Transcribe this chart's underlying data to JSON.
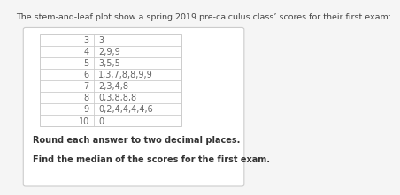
{
  "title": "The stem-and-leaf plot show a spring 2019 pre-calculus class’ scores for their first exam:",
  "stems": [
    "3",
    "4",
    "5",
    "6",
    "7",
    "8",
    "9",
    "10"
  ],
  "leaves": [
    "3",
    "2,9,9",
    "3,5,5",
    "1,3,7,8,8,9,9",
    "2,3,4,8",
    "0,3,8,8,8",
    "0,2,4,4,4,4,6",
    "0"
  ],
  "footer_line1": "Round each answer to two decimal places.",
  "footer_line2": "Find the median of the scores for the first exam.",
  "bg_color": "#f5f5f5",
  "outer_box_bg": "#ffffff",
  "outer_box_edge": "#cccccc",
  "inner_table_edge": "#cccccc",
  "text_color": "#666666",
  "title_color": "#444444",
  "footer_color": "#333333",
  "font_size": 7.0,
  "title_font_size": 6.8,
  "footer_font_size": 7.0
}
